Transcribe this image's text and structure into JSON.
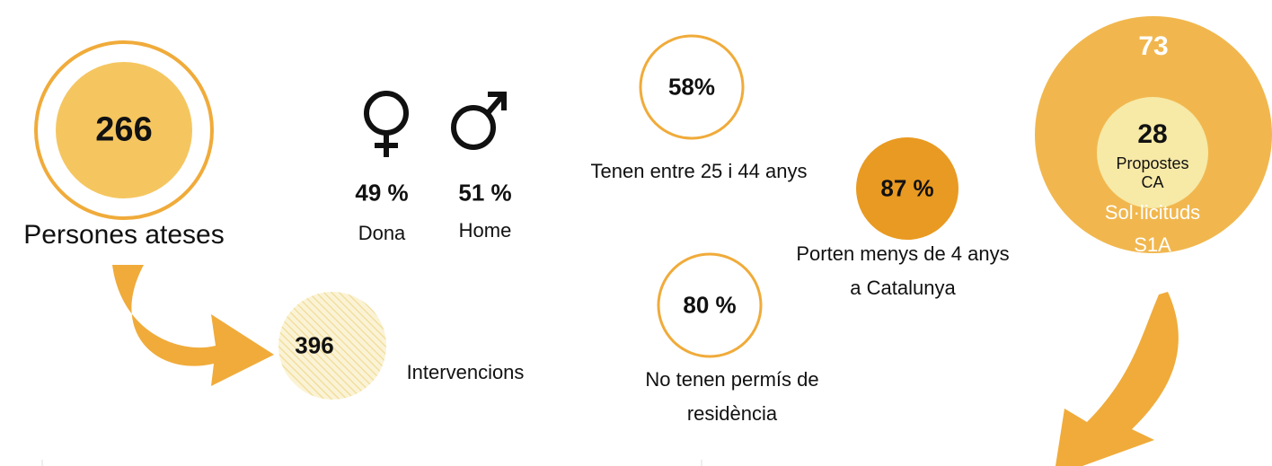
{
  "people": {
    "value": "266",
    "label": "Persones ateses"
  },
  "gender": {
    "female_value": "49 %",
    "female_label": "Dona",
    "male_value": "51 %",
    "male_label": "Home"
  },
  "interventions": {
    "value": "396",
    "label": "Intervencions"
  },
  "age": {
    "value": "58%",
    "label": "Tenen entre 25 i 44 anys"
  },
  "residence": {
    "value": "80 %",
    "label": "No tenen permís de residència"
  },
  "catalonia": {
    "value": "87 %",
    "label": "Porten menys de 4 anys a Catalunya"
  },
  "requests": {
    "value": "73",
    "label": "Sol·licituds S1A",
    "inner_value": "28",
    "inner_label": "Propostes CA"
  }
}
